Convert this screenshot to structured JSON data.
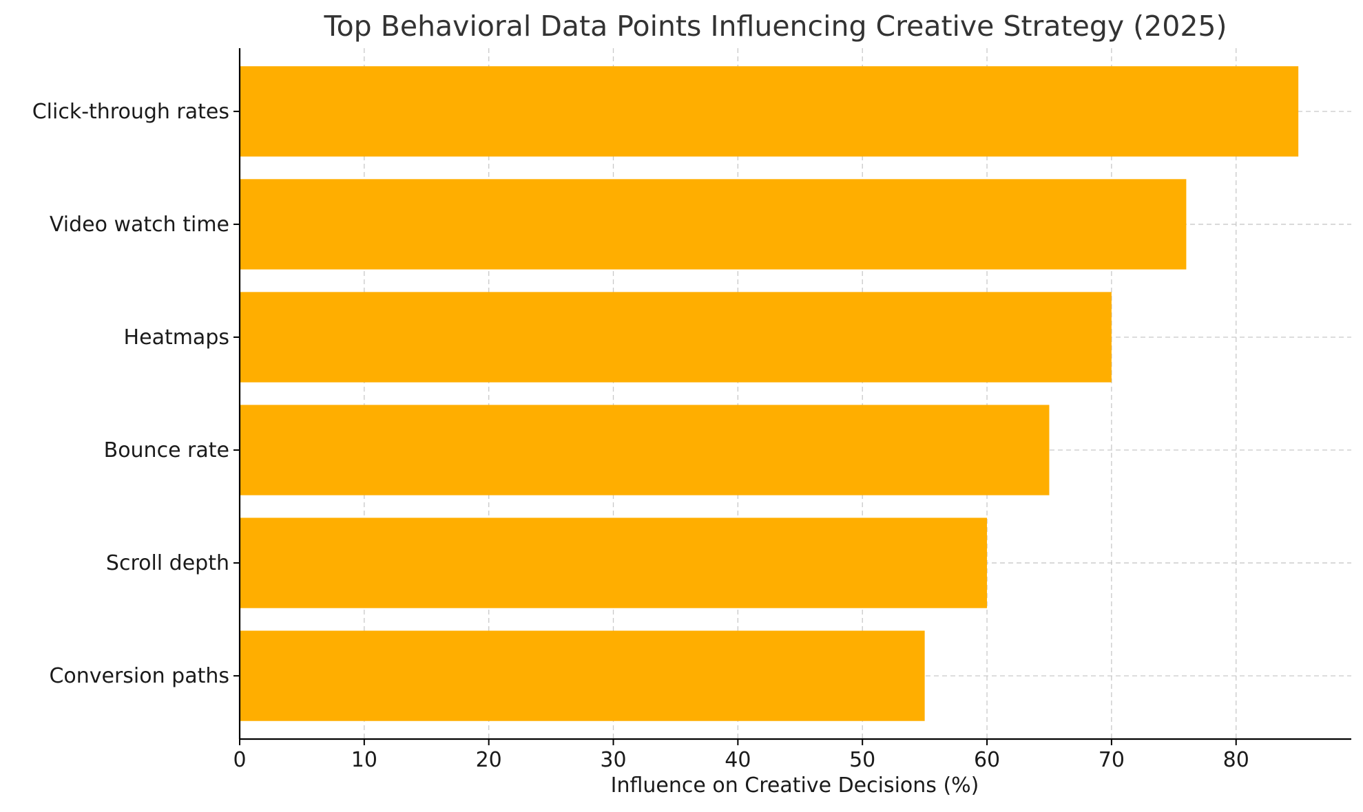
{
  "chart_data": {
    "type": "bar",
    "orientation": "horizontal",
    "title": "Top Behavioral Data Points Influencing Creative Strategy (2025)",
    "xlabel": "Influence on Creative Decisions (%)",
    "ylabel": "",
    "categories": [
      "Click-through rates",
      "Video watch time",
      "Heatmaps",
      "Bounce rate",
      "Scroll depth",
      "Conversion paths"
    ],
    "values": [
      85,
      76,
      70,
      65,
      60,
      55
    ],
    "xlim": [
      0,
      89.25
    ],
    "xticks": [
      0,
      10,
      20,
      30,
      40,
      50,
      60,
      70,
      80
    ],
    "grid": true,
    "legend": "none",
    "colors": {
      "bar": "#FFAE00",
      "grid": "#C8C8C8",
      "axis": "#000000",
      "title": "#333333"
    }
  }
}
